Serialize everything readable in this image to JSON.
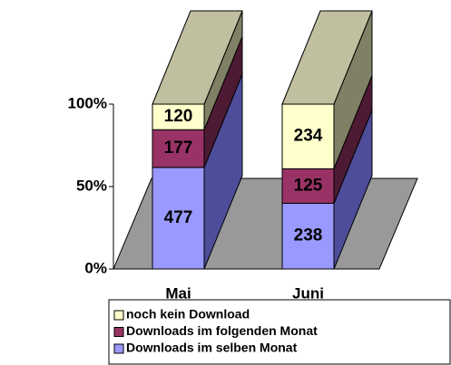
{
  "chart_data": {
    "type": "bar",
    "stacking": "percent",
    "categories": [
      "Mai",
      "Juni"
    ],
    "series": [
      {
        "name": "Downloads im selben Monat",
        "color": "#9999ff",
        "side_color": "#4d4d99",
        "values": [
          477,
          238
        ]
      },
      {
        "name": "Downloads im folgenden Monat",
        "color": "#993366",
        "side_color": "#4d1a33",
        "values": [
          177,
          125
        ]
      },
      {
        "name": "noch kein Download",
        "color": "#ffffcc",
        "side_color": "#808066",
        "values": [
          120,
          234
        ]
      }
    ],
    "top_color": "#c0c0a0",
    "floor_color": "#999999",
    "ylim": [
      0,
      100
    ],
    "yticks": [
      {
        "value": 0,
        "label": "0%"
      },
      {
        "value": 50,
        "label": "50%"
      },
      {
        "value": 100,
        "label": "100%"
      }
    ],
    "legend": "bottom"
  }
}
